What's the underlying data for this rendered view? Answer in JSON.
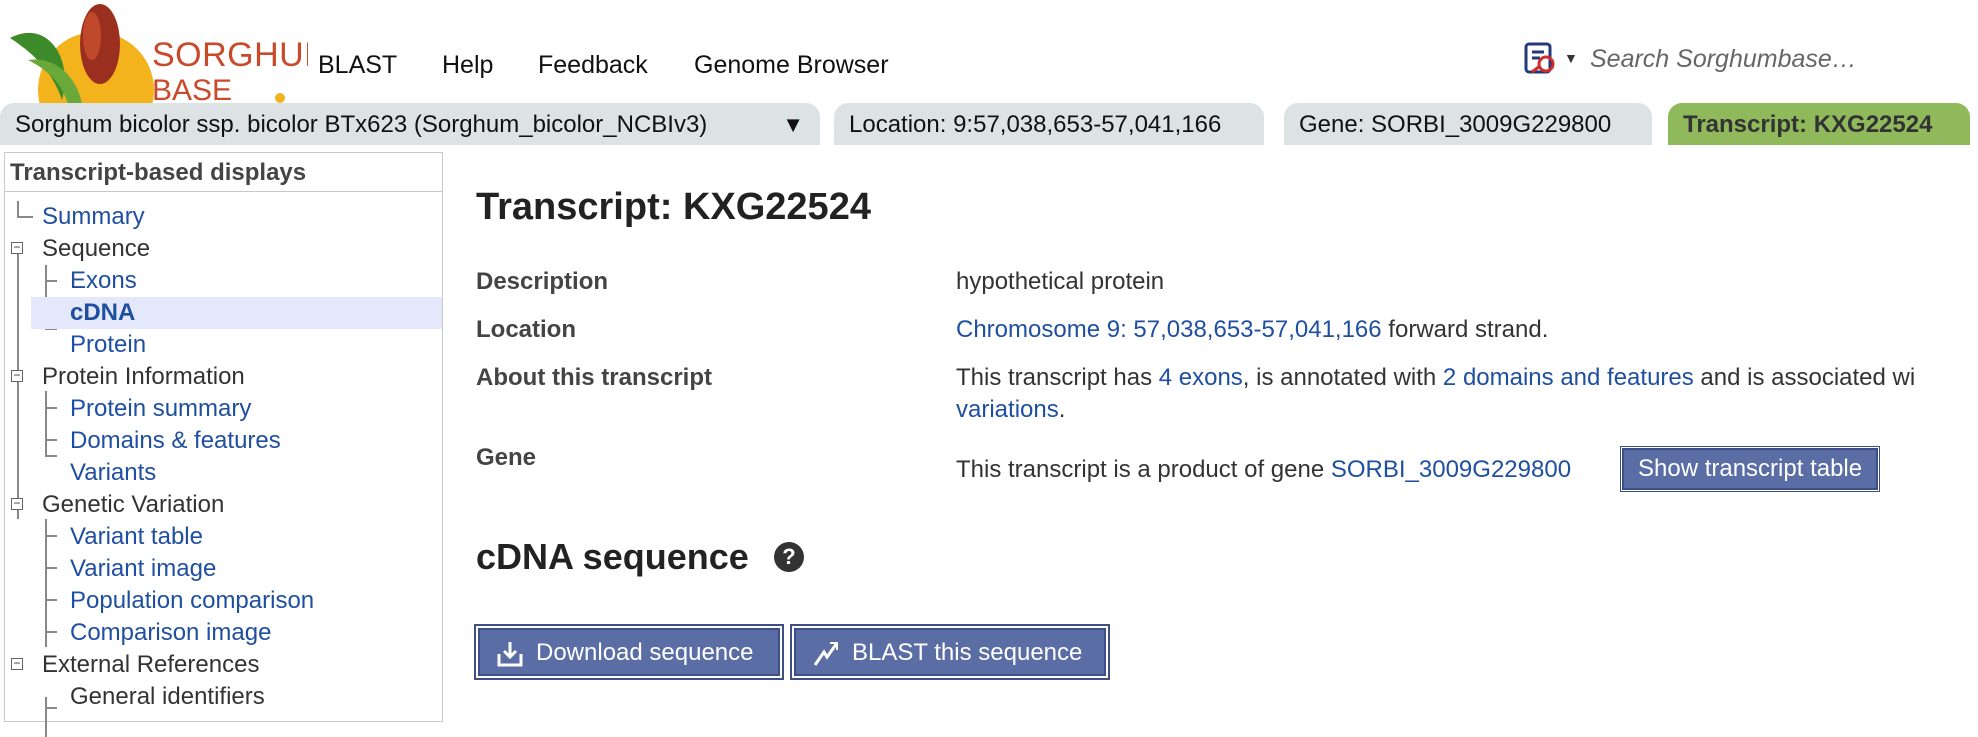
{
  "logo": {
    "line1": "SORGHUM",
    "line2": "BASE"
  },
  "topnav": [
    "BLAST",
    "Help",
    "Feedback",
    "Genome Browser"
  ],
  "search": {
    "placeholder": "Search Sorghumbase…",
    "engine_icon": "search-engine-icon"
  },
  "tabs": {
    "species": "Sorghum bicolor ssp. bicolor BTx623 (Sorghum_bicolor_NCBIv3)",
    "species_caret": "▼",
    "location": "Location: 9:57,038,653-57,041,166",
    "gene": "Gene: SORBI_3009G229800",
    "transcript": "Transcript: KXG22524"
  },
  "sidebar": {
    "title": "Transcript-based displays",
    "items": {
      "summary": "Summary",
      "sequence": "Sequence",
      "exons": "Exons",
      "cdna": "cDNA",
      "protein": "Protein",
      "protein_information": "Protein Information",
      "protein_summary": "Protein summary",
      "domains_features": "Domains & features",
      "variants": "Variants",
      "genetic_variation": "Genetic Variation",
      "variant_table": "Variant table",
      "variant_image": "Variant image",
      "population_comparison": "Population comparison",
      "comparison_image": "Comparison image",
      "external_references": "External References",
      "general_identifiers": "General identifiers"
    }
  },
  "main": {
    "title": "Transcript: KXG22524",
    "description": {
      "label": "Description",
      "value": "hypothetical protein"
    },
    "location": {
      "label": "Location",
      "link": "Chromosome 9: 57,038,653-57,041,166",
      "suffix": "forward strand."
    },
    "about": {
      "label": "About this transcript",
      "t1": "This transcript has ",
      "exons_link": "4 exons",
      "t2": ", is annotated with ",
      "domains_link": "2 domains and features",
      "t3": " and is associated wi",
      "variations_link": "variations",
      "t4": "."
    },
    "gene": {
      "label": "Gene",
      "text": "This transcript is a product of gene ",
      "gene_link": "SORBI_3009G229800",
      "button": "Show transcript table"
    },
    "section_title": "cDNA sequence",
    "help_glyph": "?",
    "download_button": "Download sequence",
    "blast_button": "BLAST this sequence"
  },
  "colors": {
    "active_tab": "#8fb95b",
    "inactive_tab": "#dde2e4",
    "link": "#1f4fa0",
    "button": "#5a6ea5",
    "selected_row": "#e4e8fb"
  }
}
